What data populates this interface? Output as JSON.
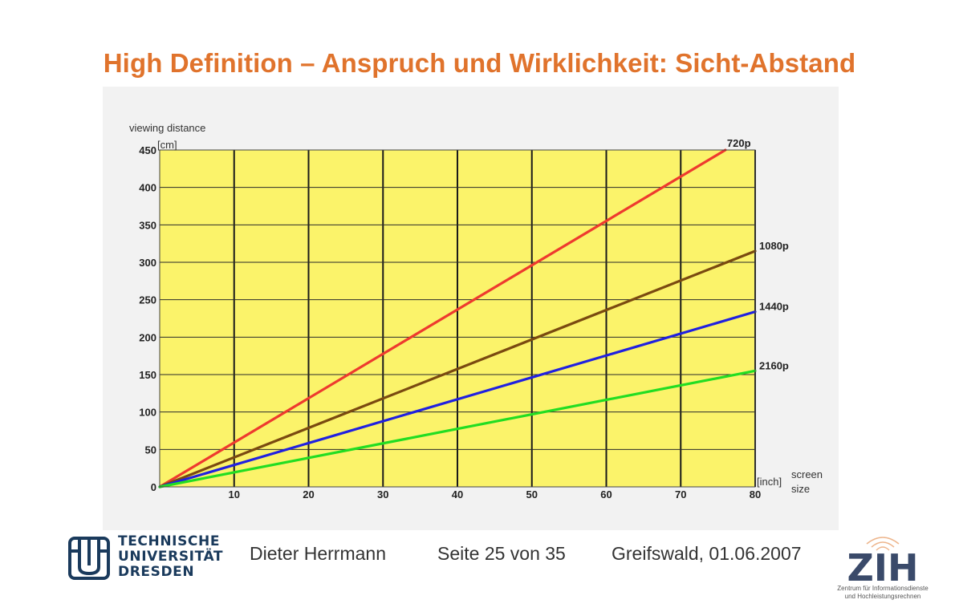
{
  "slide": {
    "title": "High Definition – Anspruch und Wirklichkeit: Sicht-Abstand"
  },
  "chart_data": {
    "type": "line",
    "title": "",
    "ylabel": "viewing distance",
    "yunit": "[cm]",
    "xlabel": "screen size",
    "xunit": "[inch]",
    "xlim": [
      0,
      80
    ],
    "ylim": [
      0,
      450
    ],
    "xticks": [
      10,
      20,
      30,
      40,
      50,
      60,
      70,
      80
    ],
    "yticks": [
      0,
      50,
      100,
      150,
      200,
      250,
      300,
      350,
      400,
      450
    ],
    "grid": true,
    "background_color": "#fbf36a",
    "series": [
      {
        "name": "720p",
        "color": "#ee3a2e",
        "x": [
          0,
          76
        ],
        "y": [
          0,
          450
        ]
      },
      {
        "name": "1080p",
        "color": "#7a4a10",
        "x": [
          0,
          80
        ],
        "y": [
          0,
          315
        ]
      },
      {
        "name": "1440p",
        "color": "#2020e0",
        "x": [
          0,
          80
        ],
        "y": [
          0,
          234
        ]
      },
      {
        "name": "2160p",
        "color": "#22dd22",
        "x": [
          0,
          80
        ],
        "y": [
          0,
          155
        ]
      }
    ]
  },
  "footer": {
    "author": "Dieter Herrmann",
    "page": "Seite 25 von 35",
    "place_date": "Greifswald, 01.06.2007",
    "university_lines": [
      "TECHNISCHE",
      "UNIVERSITÄT",
      "DRESDEN"
    ],
    "zih_acronym": "ZIH",
    "zih_sub": [
      "Zentrum für Informationsdienste",
      "und Hochleistungsrechnen"
    ],
    "tud_color": "#1a3a5c",
    "zih_color": "#3a4a6a",
    "zih_accent": "#e07a30"
  }
}
